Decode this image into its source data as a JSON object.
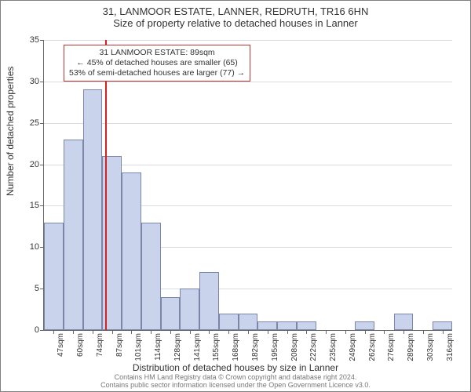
{
  "header": {
    "title": "31, LANMOOR ESTATE, LANNER, REDRUTH, TR16 6HN",
    "subtitle": "Size of property relative to detached houses in Lanner"
  },
  "chart": {
    "type": "histogram",
    "x_label": "Distribution of detached houses by size in Lanner",
    "y_label": "Number of detached properties",
    "x_unit": "sqm",
    "x_categories": [
      47,
      60,
      74,
      87,
      101,
      114,
      128,
      141,
      155,
      168,
      182,
      195,
      208,
      222,
      235,
      249,
      262,
      276,
      289,
      303,
      316
    ],
    "values": [
      13,
      23,
      29,
      21,
      19,
      13,
      4,
      5,
      7,
      2,
      2,
      1,
      1,
      1,
      0,
      0,
      1,
      0,
      2,
      0,
      1
    ],
    "y_ticks": [
      0,
      5,
      10,
      15,
      20,
      25,
      30,
      35
    ],
    "ylim": [
      0,
      35
    ],
    "bar_fill": "#c9d3eb",
    "bar_border": "#7b86a8",
    "grid_color": "#d9dde3",
    "axis_color": "#666666",
    "background": "#ffffff",
    "marker": {
      "x_index_after": 3,
      "color": "#d22222"
    },
    "annotation": {
      "line1": "31 LANMOOR ESTATE: 89sqm",
      "line2": "← 45% of detached houses are smaller (65)",
      "line3": "53% of semi-detached houses are larger (77) →",
      "border_color": "#c33333"
    },
    "label_fontsize": 11,
    "title_fontsize": 13
  },
  "footer": {
    "line1": "Contains HM Land Registry data © Crown copyright and database right 2024.",
    "line2": "Contains public sector information licensed under the Open Government Licence v3.0."
  }
}
